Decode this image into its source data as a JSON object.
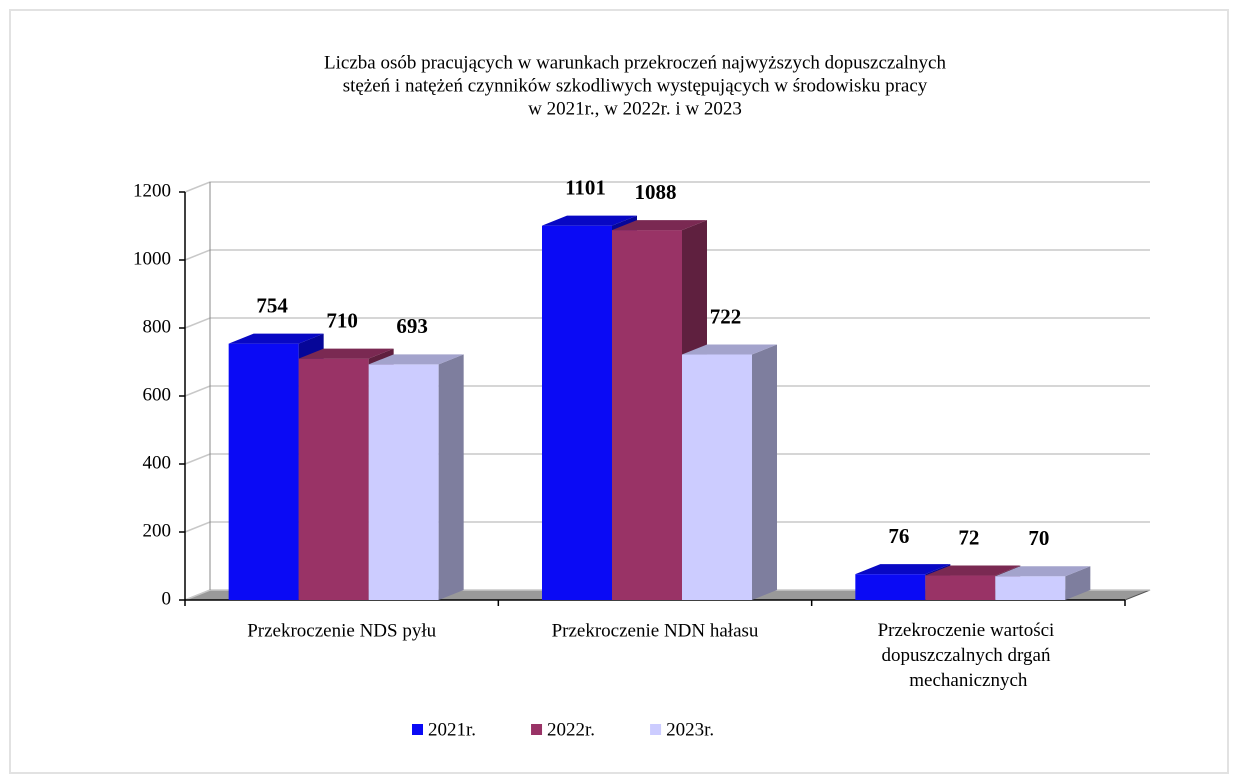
{
  "chart_data": {
    "type": "bar3d",
    "title": [
      "Liczba  osób pracujących w warunkach przekroczeń  najwyższych dopuszczalnych",
      "stężeń i natężeń czynników  szkodliwych występujących w środowisku pracy",
      "w 2021r.,  w 2022r.  i w 2023"
    ],
    "categories": [
      "Przekroczenie NDS pyłu",
      "Przekroczenie NDN hałasu",
      "Przekroczenie wartości dopuszczalnych drgań mechanicznych"
    ],
    "series": [
      {
        "name": "2021r.",
        "color": "#0a0af5",
        "values": [
          754,
          1101,
          76
        ]
      },
      {
        "name": "2022r.",
        "color": "#993366",
        "values": [
          710,
          1088,
          72
        ]
      },
      {
        "name": "2023r.",
        "color": "#ccccff",
        "values": [
          693,
          722,
          70
        ]
      }
    ],
    "ylim": [
      0,
      1200
    ],
    "yticks": [
      0,
      200,
      400,
      600,
      800,
      1000,
      1200
    ],
    "grid": true,
    "legend": "bottom"
  }
}
